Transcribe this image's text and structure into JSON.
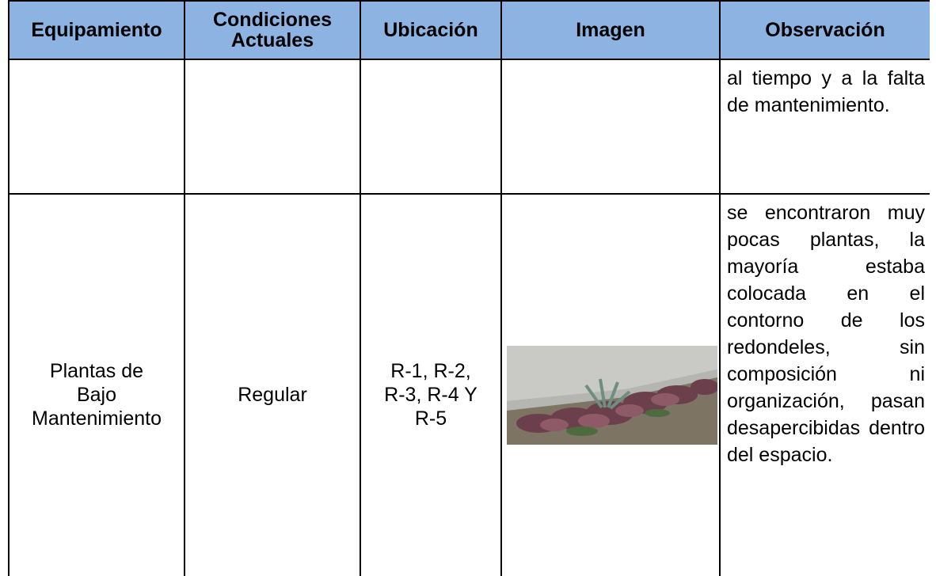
{
  "table": {
    "header": [
      "Equipamiento",
      "Condiciones Actuales",
      "Ubicación",
      "Imagen",
      "Observación"
    ],
    "rows": [
      {
        "observation": "al tiempo y a la falta de mantenimiento."
      },
      {
        "equipment": [
          "Plantas de",
          "Bajo",
          "Mantenimiento"
        ],
        "conditions": "Regular",
        "location": [
          "R-1, R-2,",
          "R-3, R-4 Y",
          "R-5"
        ],
        "observation": "se encontraron muy pocas plantas, la mayoría estaba colocada en el contorno de los redondeles, sin composición ni organización, pasan desapercibidas dentro del espacio."
      }
    ]
  }
}
